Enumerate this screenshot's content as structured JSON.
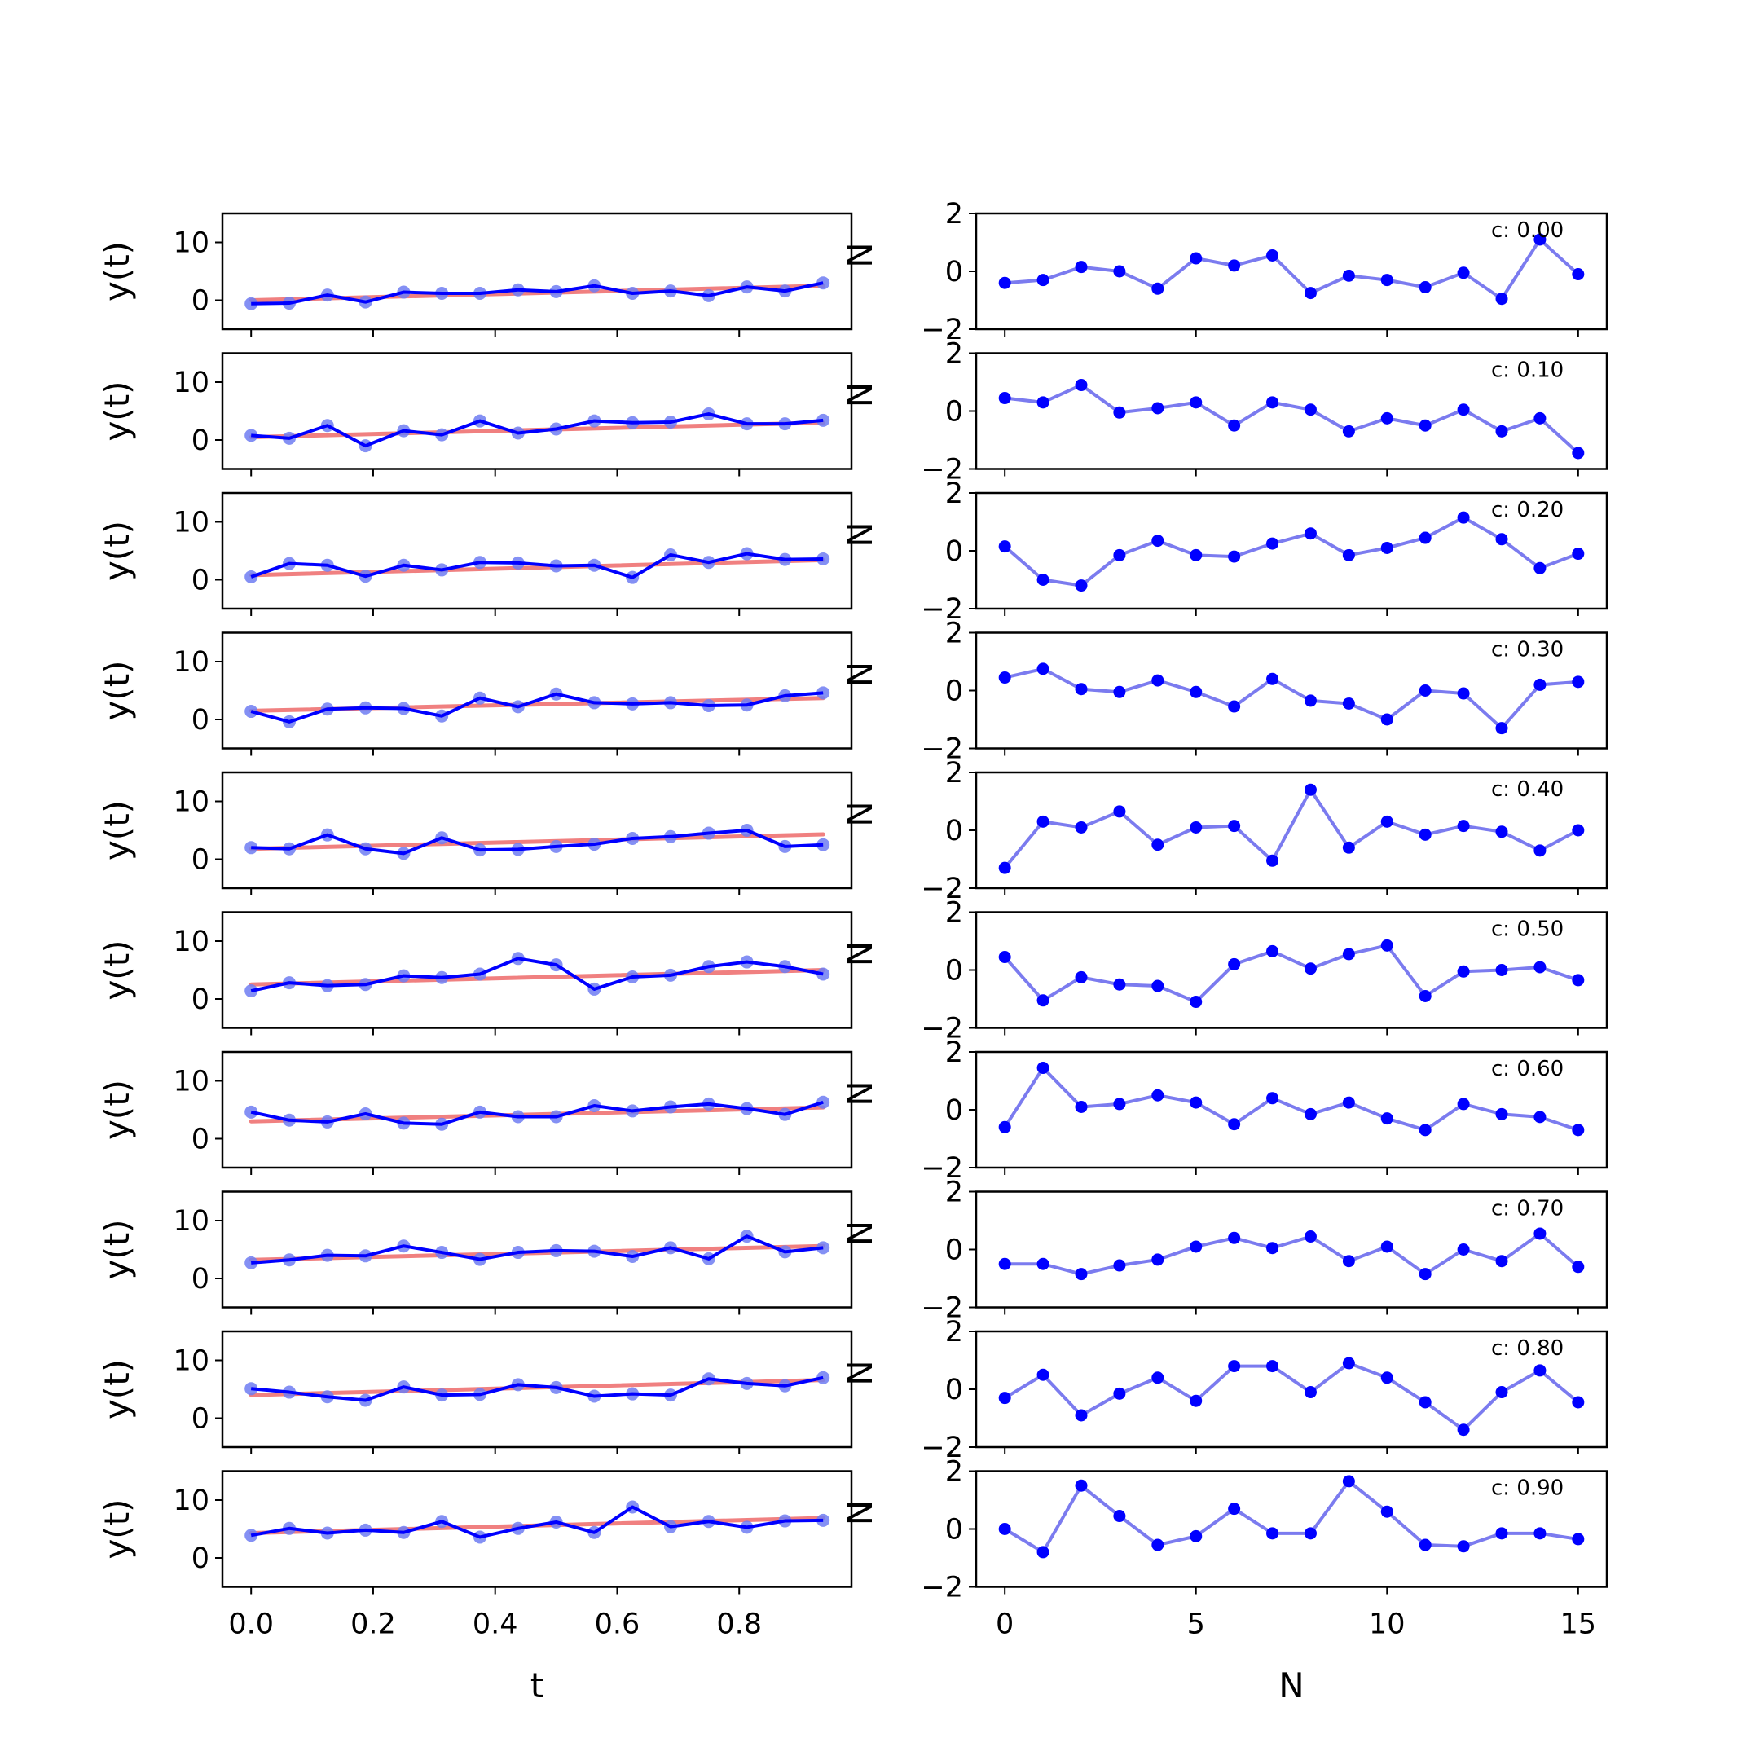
{
  "chart_data": [
    {
      "type": "line",
      "panel": "left",
      "xlabel": "t",
      "ylabel": "y(t)",
      "xlim": [
        -0.047,
        0.984
      ],
      "ylim": [
        -5,
        15
      ],
      "xticks": [
        0.0,
        0.2,
        0.4,
        0.6,
        0.8
      ],
      "xtick_labels": [
        "0.0",
        "0.2",
        "0.4",
        "0.6",
        "0.8"
      ],
      "yticks": [
        0,
        10
      ],
      "ytick_labels": [
        "0",
        "10"
      ],
      "cut_off_right_label": "N",
      "x": [
        0,
        0.0625,
        0.125,
        0.1875,
        0.25,
        0.3125,
        0.375,
        0.4375,
        0.5,
        0.5625,
        0.625,
        0.6875,
        0.75,
        0.8125,
        0.875,
        0.9375
      ],
      "colors": {
        "observed": "#0000ff",
        "points": "#6f7cf2",
        "fit": "#f08080",
        "overlap": "#7a1a6a"
      },
      "rows": [
        {
          "observed": [
            -0.6,
            -0.5,
            0.9,
            -0.3,
            1.4,
            1.2,
            1.2,
            1.8,
            1.5,
            2.5,
            1.2,
            1.6,
            0.8,
            2.3,
            1.6,
            3.0
          ],
          "fit": [
            0.0,
            2.5
          ]
        },
        {
          "observed": [
            0.8,
            0.3,
            2.5,
            -1.0,
            1.6,
            0.9,
            3.3,
            1.2,
            1.9,
            3.3,
            3.0,
            3.1,
            4.5,
            2.8,
            2.8,
            3.4
          ],
          "fit": [
            0.5,
            3.0
          ]
        },
        {
          "observed": [
            0.5,
            2.8,
            2.5,
            0.6,
            2.5,
            1.7,
            3.0,
            2.9,
            2.4,
            2.5,
            0.4,
            4.3,
            3.0,
            4.5,
            3.5,
            3.6
          ],
          "fit": [
            0.8,
            3.4
          ]
        },
        {
          "observed": [
            1.4,
            -0.4,
            1.8,
            2.0,
            1.9,
            0.6,
            3.7,
            2.2,
            4.4,
            2.9,
            2.7,
            2.9,
            2.4,
            2.5,
            4.1,
            4.6
          ],
          "fit": [
            1.5,
            3.7
          ]
        },
        {
          "observed": [
            2.0,
            1.8,
            4.2,
            1.8,
            1.0,
            3.7,
            1.6,
            1.7,
            2.2,
            2.6,
            3.6,
            3.9,
            4.5,
            5.0,
            2.2,
            2.5
          ],
          "fit": [
            1.8,
            4.3
          ]
        },
        {
          "observed": [
            1.4,
            2.8,
            2.3,
            2.5,
            4.0,
            3.7,
            4.3,
            7.0,
            5.9,
            1.7,
            3.8,
            4.1,
            5.6,
            6.4,
            5.6,
            4.3
          ],
          "fit": [
            2.5,
            5.0
          ]
        },
        {
          "observed": [
            4.6,
            3.2,
            2.9,
            4.3,
            2.7,
            2.5,
            4.6,
            3.8,
            3.8,
            5.7,
            4.8,
            5.5,
            6.0,
            5.2,
            4.2,
            6.3
          ],
          "fit": [
            3.0,
            5.4
          ]
        },
        {
          "observed": [
            2.7,
            3.2,
            4.0,
            3.9,
            5.6,
            4.5,
            3.3,
            4.5,
            4.8,
            4.7,
            3.8,
            5.3,
            3.4,
            7.3,
            4.6,
            5.3
          ],
          "fit": [
            3.2,
            5.6
          ]
        },
        {
          "observed": [
            5.1,
            4.5,
            3.7,
            3.1,
            5.4,
            4.0,
            4.1,
            5.8,
            5.3,
            3.8,
            4.2,
            4.0,
            6.8,
            6.0,
            5.6,
            7.0
          ],
          "fit": [
            4.0,
            6.6
          ]
        },
        {
          "observed": [
            3.9,
            5.1,
            4.3,
            4.8,
            4.4,
            6.3,
            3.6,
            5.1,
            6.2,
            4.4,
            8.8,
            5.4,
            6.3,
            5.3,
            6.4,
            6.5
          ],
          "fit": [
            4.3,
            6.9
          ]
        }
      ]
    },
    {
      "type": "line",
      "panel": "right",
      "xlabel": "N",
      "ylabel": "",
      "xlim": [
        -0.75,
        15.75
      ],
      "ylim": [
        -2,
        2
      ],
      "xticks": [
        0,
        5,
        10,
        15
      ],
      "xtick_labels": [
        "0",
        "5",
        "10",
        "15"
      ],
      "yticks": [
        -2,
        0,
        2
      ],
      "ytick_labels": [
        "−2",
        "0",
        "2"
      ],
      "x": [
        0,
        1,
        2,
        3,
        4,
        5,
        6,
        7,
        8,
        9,
        10,
        11,
        12,
        13,
        14,
        15
      ],
      "colors": {
        "line": "#7b7bef",
        "points": "#0000ff"
      },
      "rows": [
        {
          "label": "c: 0.00",
          "values": [
            -0.4,
            -0.3,
            0.15,
            0.0,
            -0.6,
            0.45,
            0.2,
            0.55,
            -0.75,
            -0.15,
            -0.3,
            -0.55,
            -0.05,
            -0.95,
            1.1,
            -0.1
          ]
        },
        {
          "label": "c: 0.10",
          "values": [
            0.45,
            0.3,
            0.9,
            -0.05,
            0.1,
            0.3,
            -0.5,
            0.3,
            0.05,
            -0.7,
            -0.25,
            -0.5,
            0.05,
            -0.7,
            -0.25,
            -1.45
          ]
        },
        {
          "label": "c: 0.20",
          "values": [
            0.15,
            -1.0,
            -1.2,
            -0.15,
            0.35,
            -0.15,
            -0.2,
            0.25,
            0.6,
            -0.15,
            0.1,
            0.45,
            1.15,
            0.4,
            -0.6,
            -0.1
          ]
        },
        {
          "label": "c: 0.30",
          "values": [
            0.45,
            0.75,
            0.05,
            -0.05,
            0.35,
            -0.05,
            -0.55,
            0.4,
            -0.35,
            -0.45,
            -1.0,
            0.0,
            -0.1,
            -1.3,
            0.2,
            0.3
          ]
        },
        {
          "label": "c: 0.40",
          "values": [
            -1.3,
            0.3,
            0.1,
            0.65,
            -0.5,
            0.1,
            0.15,
            -1.05,
            1.4,
            -0.6,
            0.3,
            -0.15,
            0.15,
            -0.05,
            -0.7,
            0.0
          ]
        },
        {
          "label": "c: 0.50",
          "values": [
            0.45,
            -1.05,
            -0.25,
            -0.5,
            -0.55,
            -1.1,
            0.2,
            0.65,
            0.05,
            0.55,
            0.85,
            -0.9,
            -0.05,
            0.0,
            0.1,
            -0.35
          ]
        },
        {
          "label": "c: 0.60",
          "values": [
            -0.6,
            1.45,
            0.1,
            0.2,
            0.5,
            0.25,
            -0.5,
            0.4,
            -0.15,
            0.25,
            -0.3,
            -0.7,
            0.2,
            -0.15,
            -0.25,
            -0.7
          ]
        },
        {
          "label": "c: 0.70",
          "values": [
            -0.5,
            -0.5,
            -0.85,
            -0.55,
            -0.35,
            0.1,
            0.4,
            0.05,
            0.45,
            -0.4,
            0.1,
            -0.85,
            0.0,
            -0.4,
            0.55,
            -0.6
          ]
        },
        {
          "label": "c: 0.80",
          "values": [
            -0.3,
            0.5,
            -0.9,
            -0.15,
            0.4,
            -0.4,
            0.8,
            0.8,
            -0.1,
            0.9,
            0.4,
            -0.45,
            -1.4,
            -0.1,
            0.65,
            -0.45
          ]
        },
        {
          "label": "c: 0.90",
          "values": [
            0.0,
            -0.8,
            1.5,
            0.45,
            -0.55,
            -0.25,
            0.7,
            -0.15,
            -0.15,
            1.65,
            0.6,
            -0.55,
            -0.6,
            -0.15,
            -0.15,
            -0.35
          ]
        }
      ]
    }
  ]
}
